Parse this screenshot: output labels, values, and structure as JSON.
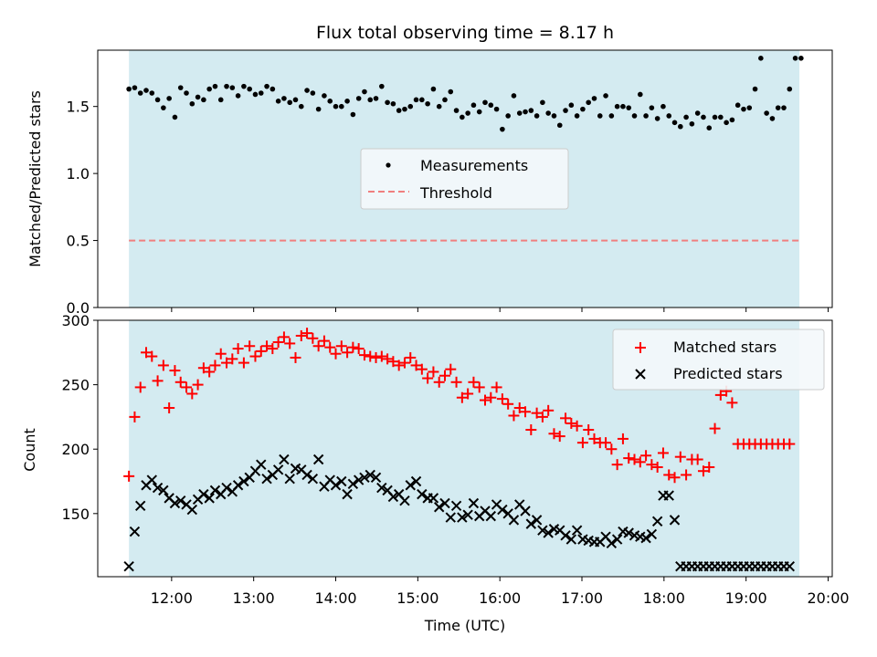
{
  "title": "Flux total observing time = 8.17 h",
  "colors": {
    "observing_span": "#d4ebf1",
    "measurement": "#000000",
    "threshold": "#f07f7f",
    "matched": "#ff0000",
    "predicted": "#000000"
  },
  "chart_data": [
    {
      "type": "scatter",
      "ylabel": "Matched/Predicted stars",
      "xlim": [
        11.1,
        20.05
      ],
      "ylim": [
        0.0,
        1.92
      ],
      "yticks": [
        "0.0",
        "0.5",
        "1.0",
        "1.5"
      ],
      "shaded_span": [
        11.48,
        19.65
      ],
      "threshold": 0.5,
      "legend": {
        "position": "center",
        "entries": [
          "Measurements",
          "Threshold"
        ]
      },
      "series": [
        {
          "name": "Measurements",
          "marker": "dot",
          "x": [
            11.48,
            11.55,
            11.62,
            11.69,
            11.76,
            11.83,
            11.9,
            11.97,
            12.04,
            12.11,
            12.18,
            12.25,
            12.32,
            12.39,
            12.46,
            12.53,
            12.6,
            12.67,
            12.74,
            12.81,
            12.88,
            12.95,
            13.02,
            13.09,
            13.16,
            13.23,
            13.3,
            13.37,
            13.44,
            13.51,
            13.58,
            13.65,
            13.72,
            13.79,
            13.86,
            13.93,
            14.0,
            14.07,
            14.14,
            14.21,
            14.28,
            14.35,
            14.42,
            14.49,
            14.56,
            14.63,
            14.7,
            14.77,
            14.84,
            14.91,
            14.98,
            15.05,
            15.12,
            15.19,
            15.26,
            15.33,
            15.4,
            15.47,
            15.54,
            15.61,
            15.68,
            15.75,
            15.82,
            15.89,
            15.96,
            16.03,
            16.1,
            16.17,
            16.24,
            16.31,
            16.38,
            16.45,
            16.52,
            16.59,
            16.66,
            16.73,
            16.8,
            16.87,
            16.94,
            17.01,
            17.08,
            17.15,
            17.22,
            17.29,
            17.36,
            17.43,
            17.5,
            17.57,
            17.64,
            17.71,
            17.78,
            17.85,
            17.92,
            17.99,
            18.06,
            18.13,
            18.2,
            18.27,
            18.34,
            18.41,
            18.48,
            18.55,
            18.62,
            18.69,
            18.76,
            18.83,
            18.9,
            18.97,
            19.04,
            19.11,
            19.18,
            19.25,
            19.32,
            19.39,
            19.46,
            19.53,
            19.6,
            19.67
          ],
          "y": [
            1.63,
            1.64,
            1.6,
            1.62,
            1.6,
            1.55,
            1.49,
            1.56,
            1.42,
            1.64,
            1.6,
            1.52,
            1.57,
            1.55,
            1.63,
            1.65,
            1.55,
            1.65,
            1.64,
            1.58,
            1.65,
            1.63,
            1.59,
            1.6,
            1.65,
            1.63,
            1.54,
            1.56,
            1.53,
            1.55,
            1.5,
            1.62,
            1.6,
            1.48,
            1.58,
            1.54,
            1.5,
            1.5,
            1.54,
            1.44,
            1.56,
            1.61,
            1.55,
            1.56,
            1.65,
            1.53,
            1.52,
            1.47,
            1.48,
            1.5,
            1.55,
            1.55,
            1.52,
            1.63,
            1.5,
            1.55,
            1.61,
            1.47,
            1.42,
            1.45,
            1.51,
            1.46,
            1.53,
            1.51,
            1.48,
            1.33,
            1.43,
            1.58,
            1.45,
            1.46,
            1.47,
            1.43,
            1.53,
            1.45,
            1.43,
            1.36,
            1.47,
            1.51,
            1.43,
            1.48,
            1.53,
            1.56,
            1.43,
            1.58,
            1.43,
            1.5,
            1.5,
            1.49,
            1.43,
            1.59,
            1.43,
            1.49,
            1.41,
            1.5,
            1.43,
            1.38,
            1.35,
            1.42,
            1.37,
            1.45,
            1.42,
            1.34,
            1.42,
            1.42,
            1.38,
            1.4,
            1.51,
            1.48,
            1.49,
            1.63,
            1.86,
            1.45,
            1.41,
            1.49,
            1.49,
            1.63,
            1.86,
            1.86
          ]
        },
        {
          "name": "Threshold",
          "line": "dashed",
          "x": [
            11.48,
            19.65
          ],
          "y": [
            0.5,
            0.5
          ]
        }
      ]
    },
    {
      "type": "scatter",
      "xlabel": "Time (UTC)",
      "ylabel": "Count",
      "xlim": [
        11.1,
        20.05
      ],
      "ylim": [
        101,
        300
      ],
      "xticks": [
        "12:00",
        "13:00",
        "14:00",
        "15:00",
        "16:00",
        "17:00",
        "18:00",
        "19:00",
        "20:00"
      ],
      "xtick_values": [
        12,
        13,
        14,
        15,
        16,
        17,
        18,
        19,
        20
      ],
      "yticks": [
        "150",
        "200",
        "250",
        "300"
      ],
      "ytick_values": [
        150,
        200,
        250,
        300
      ],
      "shaded_span": [
        11.48,
        19.65
      ],
      "legend": {
        "position": "top-right",
        "entries": [
          "Matched stars",
          "Predicted stars"
        ]
      },
      "series": [
        {
          "name": "Matched stars",
          "marker": "plus",
          "x": [
            11.48,
            11.55,
            11.62,
            11.69,
            11.76,
            11.83,
            11.9,
            11.97,
            12.04,
            12.11,
            12.18,
            12.25,
            12.32,
            12.39,
            12.46,
            12.53,
            12.6,
            12.67,
            12.74,
            12.81,
            12.88,
            12.95,
            13.02,
            13.09,
            13.16,
            13.23,
            13.3,
            13.37,
            13.44,
            13.51,
            13.58,
            13.65,
            13.72,
            13.79,
            13.86,
            13.93,
            14.0,
            14.07,
            14.14,
            14.21,
            14.28,
            14.35,
            14.42,
            14.49,
            14.56,
            14.63,
            14.7,
            14.77,
            14.84,
            14.91,
            14.98,
            15.05,
            15.12,
            15.19,
            15.26,
            15.33,
            15.4,
            15.47,
            15.54,
            15.61,
            15.68,
            15.75,
            15.82,
            15.89,
            15.96,
            16.03,
            16.1,
            16.17,
            16.24,
            16.31,
            16.38,
            16.45,
            16.52,
            16.59,
            16.66,
            16.73,
            16.8,
            16.87,
            16.94,
            17.01,
            17.08,
            17.15,
            17.22,
            17.29,
            17.36,
            17.43,
            17.5,
            17.57,
            17.64,
            17.71,
            17.78,
            17.85,
            17.92,
            17.99,
            18.06,
            18.13,
            18.2,
            18.27,
            18.34,
            18.41,
            18.48,
            18.55,
            18.62,
            18.69,
            18.76,
            18.83,
            18.9,
            18.97,
            19.04,
            19.11,
            19.18,
            19.25,
            19.32,
            19.39,
            19.46,
            19.53,
            19.6,
            19.67
          ],
          "y": [
            179,
            225,
            248,
            275,
            272,
            253,
            265,
            232,
            261,
            252,
            248,
            243,
            250,
            263,
            260,
            265,
            274,
            267,
            270,
            278,
            267,
            280,
            272,
            276,
            280,
            278,
            283,
            287,
            282,
            271,
            288,
            290,
            286,
            280,
            284,
            279,
            274,
            280,
            275,
            279,
            278,
            273,
            272,
            271,
            272,
            270,
            268,
            265,
            267,
            271,
            265,
            262,
            255,
            260,
            252,
            257,
            262,
            252,
            240,
            243,
            252,
            248,
            238,
            240,
            248,
            239,
            235,
            226,
            232,
            229,
            215,
            228,
            225,
            230,
            212,
            210,
            224,
            220,
            218,
            205,
            215,
            208,
            205,
            205,
            200,
            188,
            208,
            193,
            192,
            190,
            195,
            188,
            186,
            197,
            180,
            178,
            194,
            180,
            192,
            192,
            183,
            186,
            216,
            242,
            245,
            236,
            204,
            204,
            204,
            204,
            204,
            204,
            204,
            204,
            204,
            204,
            204,
            204
          ],
          "y_note": ""
        },
        {
          "name": "Predicted stars",
          "marker": "x",
          "x": [
            11.48,
            11.55,
            11.62,
            11.69,
            11.76,
            11.83,
            11.9,
            11.97,
            12.04,
            12.11,
            12.18,
            12.25,
            12.32,
            12.39,
            12.46,
            12.53,
            12.6,
            12.67,
            12.74,
            12.81,
            12.88,
            12.95,
            13.02,
            13.09,
            13.16,
            13.23,
            13.3,
            13.37,
            13.44,
            13.51,
            13.58,
            13.65,
            13.72,
            13.79,
            13.86,
            13.93,
            14.0,
            14.07,
            14.14,
            14.21,
            14.28,
            14.35,
            14.42,
            14.49,
            14.56,
            14.63,
            14.7,
            14.77,
            14.84,
            14.91,
            14.98,
            15.05,
            15.12,
            15.19,
            15.26,
            15.33,
            15.4,
            15.47,
            15.54,
            15.61,
            15.68,
            15.75,
            15.82,
            15.89,
            15.96,
            16.03,
            16.1,
            16.17,
            16.24,
            16.31,
            16.38,
            16.45,
            16.52,
            16.59,
            16.66,
            16.73,
            16.8,
            16.87,
            16.94,
            17.01,
            17.08,
            17.15,
            17.22,
            17.29,
            17.36,
            17.43,
            17.5,
            17.57,
            17.64,
            17.71,
            17.78,
            17.85,
            17.92,
            17.99,
            18.06,
            18.13,
            18.2,
            18.27,
            18.34,
            18.41,
            18.48,
            18.55,
            18.62,
            18.69,
            18.76,
            18.83,
            18.9,
            18.97,
            19.04,
            19.11,
            19.18,
            19.25,
            19.32,
            19.39,
            19.46,
            19.53,
            19.6,
            19.67
          ],
          "y": [
            109,
            136,
            156,
            172,
            176,
            170,
            168,
            162,
            158,
            160,
            157,
            153,
            161,
            165,
            162,
            168,
            165,
            170,
            167,
            172,
            175,
            178,
            183,
            188,
            177,
            180,
            184,
            192,
            177,
            185,
            184,
            180,
            177,
            192,
            171,
            176,
            172,
            175,
            165,
            173,
            176,
            178,
            180,
            178,
            170,
            168,
            163,
            165,
            160,
            172,
            175,
            165,
            162,
            162,
            155,
            158,
            147,
            156,
            147,
            149,
            158,
            148,
            152,
            148,
            157,
            153,
            150,
            145,
            157,
            152,
            142,
            145,
            137,
            135,
            138,
            137,
            133,
            130,
            137,
            130,
            129,
            128,
            128,
            132,
            127,
            130,
            136,
            135,
            133,
            132,
            131,
            134,
            144,
            164,
            164,
            145,
            109,
            109,
            109,
            109,
            109,
            109,
            109,
            109,
            109,
            109,
            109,
            109,
            109,
            109,
            109,
            109,
            109,
            109,
            109,
            109,
            109,
            109
          ]
        }
      ]
    }
  ]
}
